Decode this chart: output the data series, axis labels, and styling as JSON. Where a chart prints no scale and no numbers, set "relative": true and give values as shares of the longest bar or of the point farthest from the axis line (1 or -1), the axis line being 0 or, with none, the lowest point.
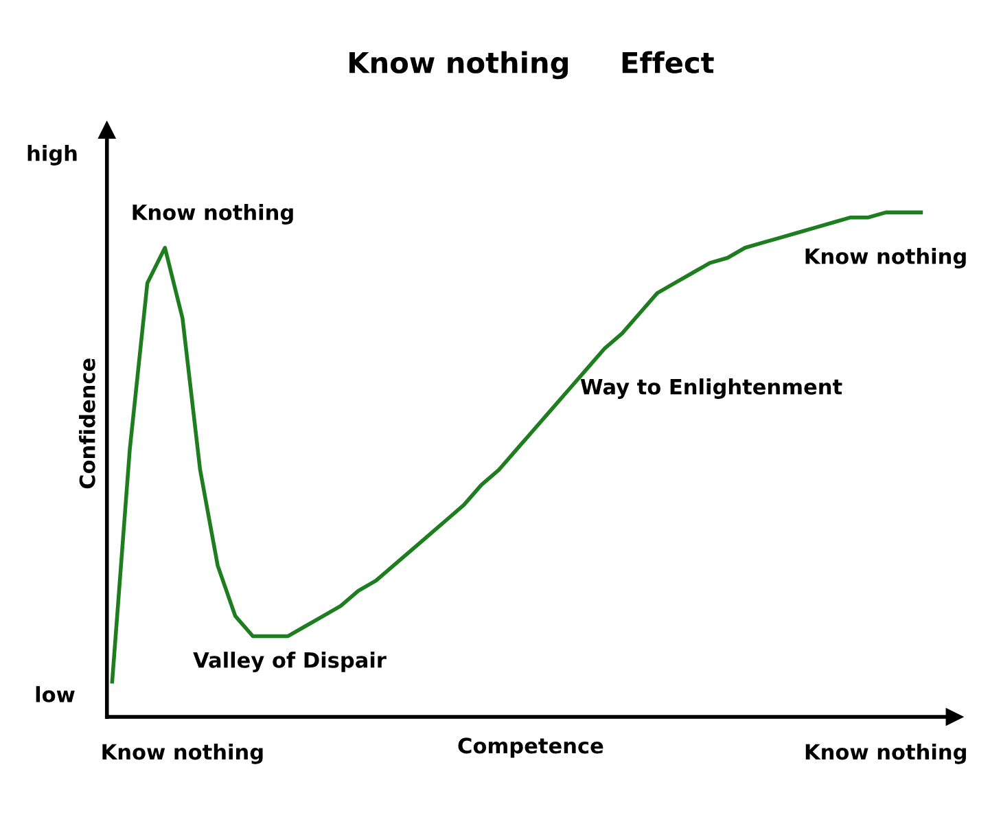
{
  "chart_data": {
    "type": "line",
    "title": "Know nothing     Effect",
    "xlabel": "Competence",
    "ylabel": "Confidence",
    "relative": true,
    "categories": [
      null,
      null,
      null,
      null,
      "Know nothing",
      null,
      null,
      null,
      null,
      null,
      null,
      null,
      null,
      null,
      null,
      null,
      null,
      null,
      null,
      null,
      null,
      null,
      null,
      null,
      null,
      null,
      null,
      null,
      null,
      null,
      null,
      null,
      null,
      null,
      null,
      null,
      null,
      null,
      null,
      null,
      null,
      null,
      null,
      null,
      "Know nothing",
      null,
      null
    ],
    "series": [
      {
        "color": "#1e7d1e",
        "values": [
          0.07,
          0.53,
          0.86,
          0.93,
          0.79,
          0.49,
          0.3,
          0.2,
          0.16,
          0.16,
          0.16,
          0.18,
          0.2,
          0.22,
          0.25,
          0.27,
          0.3,
          0.33,
          0.36,
          0.39,
          0.42,
          0.46,
          0.49,
          0.53,
          0.57,
          0.61,
          0.65,
          0.69,
          0.73,
          0.76,
          0.8,
          0.84,
          0.86,
          0.88,
          0.9,
          0.91,
          0.93,
          0.94,
          0.95,
          0.96,
          0.97,
          0.98,
          0.99,
          0.99,
          1.0,
          1.0,
          1.0
        ]
      }
    ],
    "grid": false,
    "legend": false,
    "marker": "none",
    "line_style": "solid",
    "annotations": [
      "high",
      "low",
      "Know nothing",
      "Valley of Dispair",
      "Way to Enlightenment",
      "Know nothing"
    ]
  }
}
